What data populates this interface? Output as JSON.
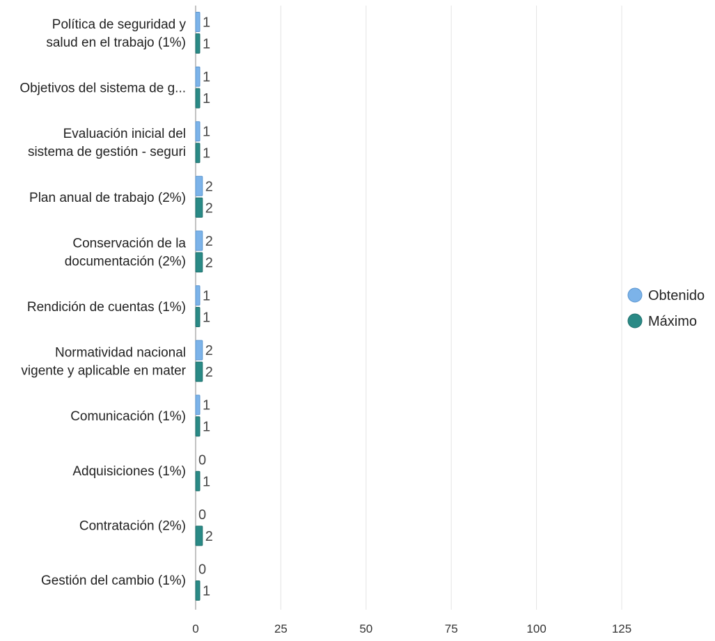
{
  "chart_data": {
    "type": "bar",
    "orientation": "horizontal",
    "categories": [
      [
        "Política de seguridad y",
        "salud en el trabajo (1%)"
      ],
      [
        "Objetivos del sistema de g..."
      ],
      [
        "Evaluación inicial del",
        "sistema de gestión - seguri"
      ],
      [
        "Plan anual de trabajo (2%)"
      ],
      [
        "Conservación de la",
        "documentación (2%)"
      ],
      [
        "Rendición de cuentas (1%)"
      ],
      [
        "Normatividad nacional",
        "vigente y aplicable en mater"
      ],
      [
        "Comunicación (1%)"
      ],
      [
        "Adquisiciones (1%)"
      ],
      [
        "Contratación (2%)"
      ],
      [
        "Gestión del cambio (1%)"
      ]
    ],
    "series": [
      {
        "name": "Obtenido",
        "color": "#7cb3e9",
        "stroke": "#5a95cf",
        "values": [
          1,
          1,
          1,
          2,
          2,
          1,
          2,
          1,
          0,
          0,
          0
        ]
      },
      {
        "name": "Máximo",
        "color": "#2a8a86",
        "stroke": "#1f6f6b",
        "values": [
          1,
          1,
          1,
          2,
          2,
          1,
          2,
          1,
          1,
          2,
          1
        ]
      }
    ],
    "xlim": [
      0,
      125
    ],
    "xticks": [
      0,
      25,
      50,
      75,
      100,
      125
    ],
    "grid": true,
    "legend_position": "right",
    "title": "",
    "xlabel": "",
    "ylabel": ""
  }
}
